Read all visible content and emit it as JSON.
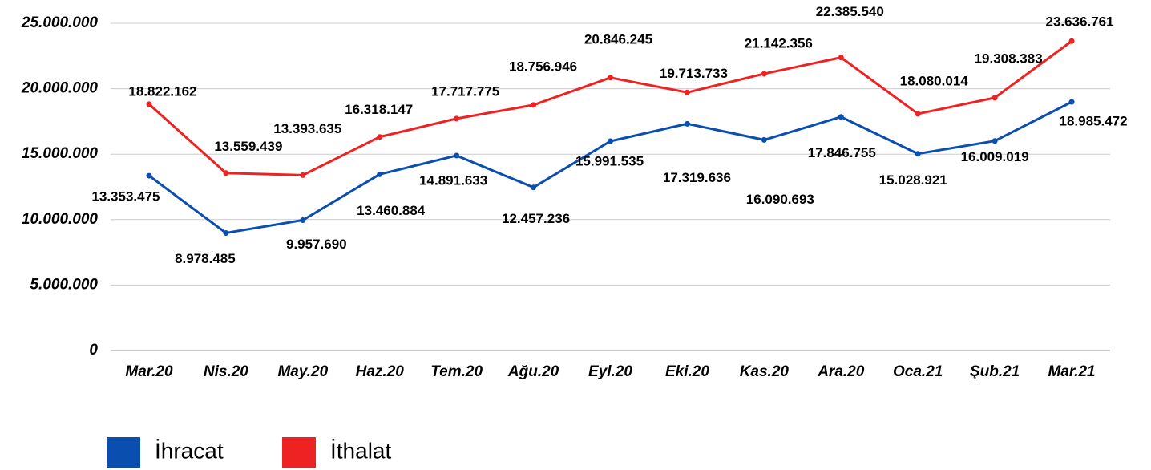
{
  "chart_data": {
    "type": "line",
    "categories": [
      "Mar.20",
      "Nis.20",
      "May.20",
      "Haz.20",
      "Tem.20",
      "Ağu.20",
      "Eyl.20",
      "Eki.20",
      "Kas.20",
      "Ara.20",
      "Oca.21",
      "Şub.21",
      "Mar.21"
    ],
    "series": [
      {
        "name": "İhracat",
        "color": "#0a4fb0",
        "values": [
          13353475,
          8978485,
          9957690,
          13460884,
          14891633,
          12457236,
          15991535,
          17319636,
          16090693,
          17846755,
          15028921,
          16009019,
          18985472
        ],
        "value_labels": [
          "13.353.475",
          "8.978.485",
          "9.957.690",
          "13.460.884",
          "14.891.633",
          "12.457.236",
          "15.991.535",
          "17.319.636",
          "16.090.693",
          "17.846.755",
          "15.028.921",
          "16.009.019",
          "18.985.472"
        ]
      },
      {
        "name": "İthalat",
        "color": "#ee2222",
        "values": [
          18822162,
          13559439,
          13393635,
          16318147,
          17717775,
          18756946,
          20846245,
          19713733,
          21142356,
          22385540,
          18080014,
          19308383,
          23636761
        ],
        "value_labels": [
          "18.822.162",
          "13.559.439",
          "13.393.635",
          "16.318.147",
          "17.717.775",
          "18.756.946",
          "20.846.245",
          "19.713.733",
          "21.142.356",
          "22.385.540",
          "18.080.014",
          "19.308.383",
          "23.636.761"
        ]
      }
    ],
    "ylim": [
      0,
      25000000
    ],
    "yticks": [
      0,
      {
        "value": 5000000,
        "label": "5.000.000"
      },
      {
        "value": 10000000,
        "label": "10.000.000"
      },
      {
        "value": 15000000,
        "label": "15.000.000"
      },
      {
        "value": 20000000,
        "label": "20.000.000"
      },
      {
        "value": 25000000,
        "label": "25.000.000"
      }
    ],
    "grid": true,
    "legend": "bottom"
  }
}
